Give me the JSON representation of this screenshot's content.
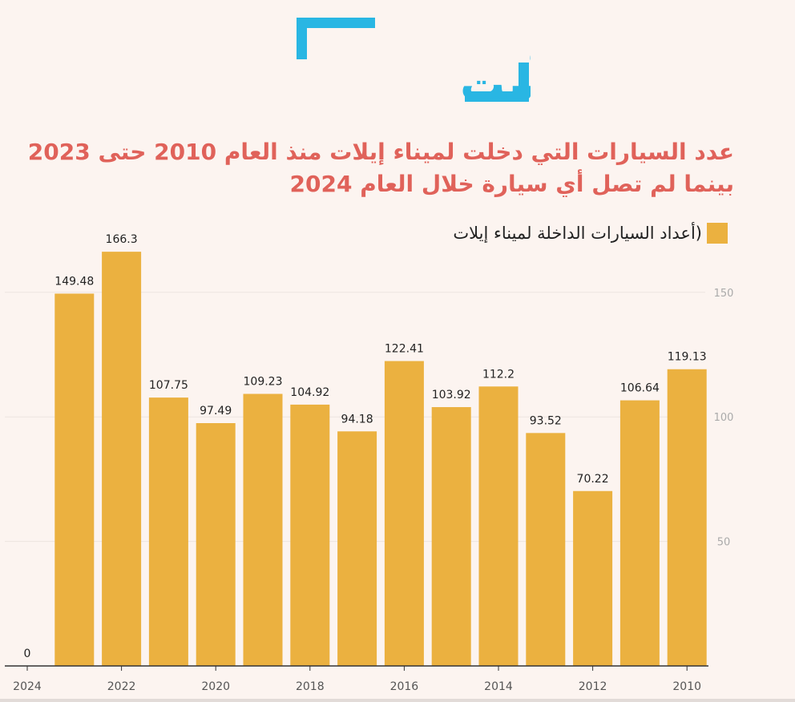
{
  "logo": {
    "text_top": "عربي",
    "text_bottom": "بوست",
    "color": "#29b6e3"
  },
  "title": {
    "line1": "عدد السيارات التي دخلت لميناء إيلات منذ العام 2010 حتى 2023",
    "line2": "بينما لم تصل أي سيارة خلال العام 2024"
  },
  "legend": {
    "label": "(أعداد السيارات الداخلة لميناء إيلات"
  },
  "colors": {
    "bar": "#ebb140",
    "title": "#e0625a",
    "background": "#fcf4f0",
    "grid": "#ece4df"
  },
  "chart_data": {
    "type": "bar",
    "x": [
      2024,
      2023,
      2022,
      2021,
      2020,
      2019,
      2018,
      2017,
      2016,
      2015,
      2014,
      2013,
      2012,
      2011,
      2010
    ],
    "values": [
      0,
      149.48,
      166.3,
      107.75,
      97.49,
      109.23,
      104.92,
      94.18,
      122.41,
      103.92,
      112.2,
      93.52,
      70.22,
      106.64,
      119.13
    ],
    "value_labels": [
      "0",
      "149.48",
      "166.3",
      "107.75",
      "97.49",
      "109.23",
      "104.92",
      "94.18",
      "122.41",
      "103.92",
      "112.2",
      "93.52",
      "70.22",
      "106.64",
      "119.13"
    ],
    "x_ticks": [
      "2024",
      "2022",
      "2020",
      "2018",
      "2016",
      "2014",
      "2012",
      "2010"
    ],
    "y_ticks": [
      50,
      100,
      150
    ],
    "ylim": [
      0,
      180
    ],
    "y_axis_side": "right",
    "x_axis_reversed": true,
    "grid": true,
    "legend_position": "top-right"
  }
}
